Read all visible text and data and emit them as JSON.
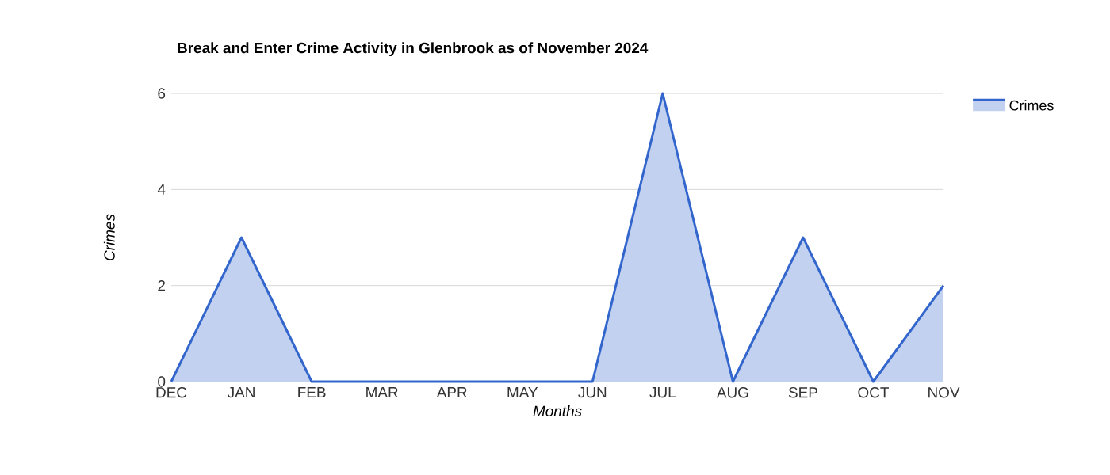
{
  "chart_data": {
    "type": "area",
    "title": "Break and Enter Crime Activity in Glenbrook as of November 2024",
    "xlabel": "Months",
    "ylabel": "Crimes",
    "categories": [
      "DEC",
      "JAN",
      "FEB",
      "MAR",
      "APR",
      "MAY",
      "JUN",
      "JUL",
      "AUG",
      "SEP",
      "OCT",
      "NOV"
    ],
    "series": [
      {
        "name": "Crimes",
        "color": "#3366cc",
        "values": [
          0,
          3,
          0,
          0,
          0,
          0,
          0,
          6,
          0,
          3,
          0,
          2
        ]
      }
    ],
    "ylim": [
      0,
      6
    ],
    "yticks": [
      0,
      2,
      4,
      6
    ],
    "grid": "y",
    "legend": "top right"
  }
}
